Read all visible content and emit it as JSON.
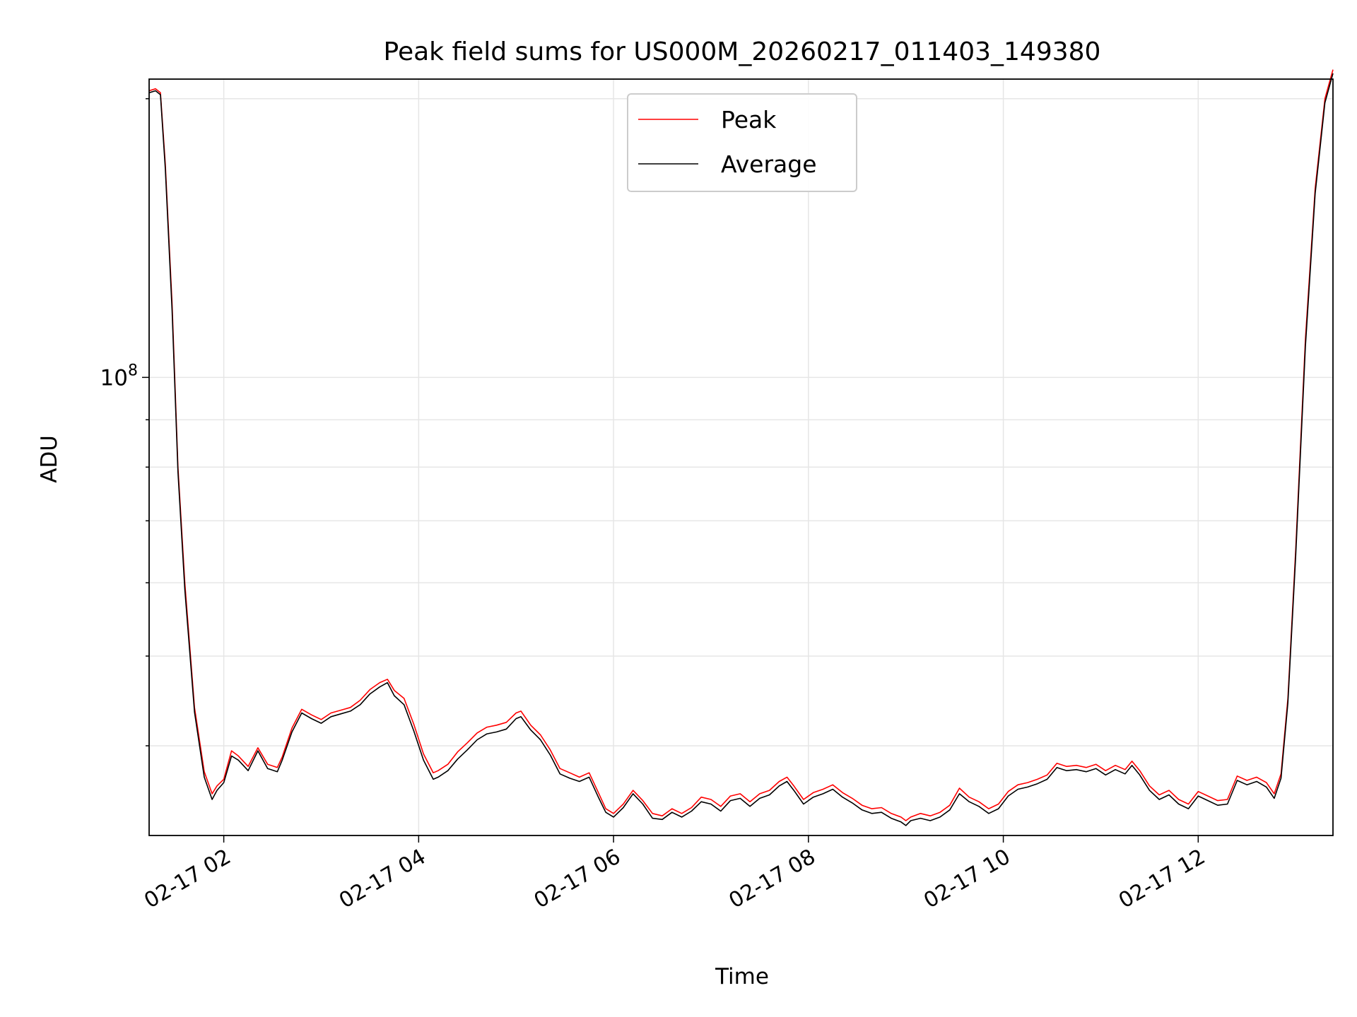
{
  "chart_data": {
    "type": "line",
    "title": "Peak field sums for US000M_20260217_011403_149380",
    "xlabel": "Time",
    "ylabel": "ADU",
    "y_scale": "log",
    "y_tick_labels": [
      {
        "base": "10",
        "exp": "8",
        "value": 100000000
      }
    ],
    "x_tick_labels": [
      "02-17 02",
      "02-17 04",
      "02-17 06",
      "02-17 08",
      "02-17 10",
      "02-17 12"
    ],
    "x_ticks_hours": [
      2,
      4,
      6,
      8,
      10,
      12
    ],
    "xlim_hours": [
      1.234,
      13.383
    ],
    "ylim": [
      32000000,
      210000000
    ],
    "grid": true,
    "legend": {
      "placement": "upper-center",
      "entries": [
        "Peak",
        "Average"
      ]
    },
    "colors": {
      "peak": "#ff0000",
      "average": "#000000",
      "grid": "#e6e6e6"
    },
    "series": [
      {
        "name": "Peak",
        "x_hours": [
          1.234,
          1.3,
          1.35,
          1.4,
          1.47,
          1.53,
          1.6,
          1.7,
          1.8,
          1.88,
          1.93,
          2.0,
          2.08,
          2.15,
          2.25,
          2.35,
          2.45,
          2.55,
          2.6,
          2.7,
          2.8,
          2.9,
          3.0,
          3.1,
          3.2,
          3.3,
          3.4,
          3.5,
          3.6,
          3.68,
          3.75,
          3.85,
          3.95,
          4.05,
          4.15,
          4.2,
          4.3,
          4.4,
          4.5,
          4.6,
          4.7,
          4.8,
          4.9,
          5.0,
          5.05,
          5.15,
          5.25,
          5.35,
          5.45,
          5.55,
          5.65,
          5.75,
          5.85,
          5.92,
          6.0,
          6.1,
          6.2,
          6.3,
          6.4,
          6.5,
          6.6,
          6.7,
          6.8,
          6.9,
          7.0,
          7.1,
          7.2,
          7.3,
          7.4,
          7.5,
          7.6,
          7.7,
          7.78,
          7.85,
          7.95,
          8.05,
          8.15,
          8.25,
          8.35,
          8.45,
          8.55,
          8.65,
          8.75,
          8.85,
          8.95,
          9.0,
          9.05,
          9.15,
          9.25,
          9.35,
          9.45,
          9.55,
          9.65,
          9.75,
          9.85,
          9.95,
          10.05,
          10.15,
          10.25,
          10.35,
          10.45,
          10.55,
          10.65,
          10.75,
          10.85,
          10.95,
          11.05,
          11.15,
          11.25,
          11.32,
          11.4,
          11.5,
          11.6,
          11.7,
          11.8,
          11.9,
          12.0,
          12.1,
          12.2,
          12.3,
          12.4,
          12.5,
          12.6,
          12.7,
          12.78,
          12.85,
          12.92,
          13.0,
          13.1,
          13.2,
          13.3,
          13.383
        ],
        "values": [
          204000000,
          205000000,
          203000000,
          170000000,
          120000000,
          80000000,
          60000000,
          44000000,
          37500000,
          35500000,
          36200000,
          36800000,
          39500000,
          39000000,
          38000000,
          39800000,
          38200000,
          37900000,
          38900000,
          41800000,
          43800000,
          43200000,
          42700000,
          43400000,
          43700000,
          44000000,
          44800000,
          46000000,
          46800000,
          47200000,
          45900000,
          45000000,
          42200000,
          39200000,
          37400000,
          37600000,
          38200000,
          39400000,
          40300000,
          41300000,
          41900000,
          42100000,
          42400000,
          43400000,
          43600000,
          42100000,
          41100000,
          39600000,
          37800000,
          37400000,
          37000000,
          37400000,
          35500000,
          34200000,
          33800000,
          34600000,
          35800000,
          34900000,
          33800000,
          33600000,
          34200000,
          33800000,
          34300000,
          35200000,
          35000000,
          34400000,
          35300000,
          35500000,
          34800000,
          35500000,
          35800000,
          36600000,
          37000000,
          36200000,
          35000000,
          35600000,
          35900000,
          36300000,
          35600000,
          35100000,
          34500000,
          34200000,
          34300000,
          33800000,
          33500000,
          33200000,
          33500000,
          33800000,
          33600000,
          33900000,
          34500000,
          36000000,
          35200000,
          34800000,
          34200000,
          34600000,
          35700000,
          36300000,
          36500000,
          36800000,
          37200000,
          38300000,
          38000000,
          38100000,
          37900000,
          38200000,
          37600000,
          38100000,
          37700000,
          38500000,
          37600000,
          36200000,
          35400000,
          35800000,
          35000000,
          34600000,
          35700000,
          35300000,
          34900000,
          35000000,
          37100000,
          36700000,
          37000000,
          36500000,
          35500000,
          37300000,
          45000000,
          65000000,
          110000000,
          160000000,
          200000000,
          215000000
        ]
      },
      {
        "name": "Average",
        "x_hours": [
          1.234,
          1.3,
          1.35,
          1.4,
          1.47,
          1.53,
          1.6,
          1.7,
          1.8,
          1.88,
          1.93,
          2.0,
          2.08,
          2.15,
          2.25,
          2.35,
          2.45,
          2.55,
          2.6,
          2.7,
          2.8,
          2.9,
          3.0,
          3.1,
          3.2,
          3.3,
          3.4,
          3.5,
          3.6,
          3.68,
          3.75,
          3.85,
          3.95,
          4.05,
          4.15,
          4.2,
          4.3,
          4.4,
          4.5,
          4.6,
          4.7,
          4.8,
          4.9,
          5.0,
          5.05,
          5.15,
          5.25,
          5.35,
          5.45,
          5.55,
          5.65,
          5.75,
          5.85,
          5.92,
          6.0,
          6.1,
          6.2,
          6.3,
          6.4,
          6.5,
          6.6,
          6.7,
          6.8,
          6.9,
          7.0,
          7.1,
          7.2,
          7.3,
          7.4,
          7.5,
          7.6,
          7.7,
          7.78,
          7.85,
          7.95,
          8.05,
          8.15,
          8.25,
          8.35,
          8.45,
          8.55,
          8.65,
          8.75,
          8.85,
          8.95,
          9.0,
          9.05,
          9.15,
          9.25,
          9.35,
          9.45,
          9.55,
          9.65,
          9.75,
          9.85,
          9.95,
          10.05,
          10.15,
          10.25,
          10.35,
          10.45,
          10.55,
          10.65,
          10.75,
          10.85,
          10.95,
          11.05,
          11.15,
          11.25,
          11.32,
          11.4,
          11.5,
          11.6,
          11.7,
          11.8,
          11.9,
          12.0,
          12.1,
          12.2,
          12.3,
          12.4,
          12.5,
          12.6,
          12.7,
          12.78,
          12.85,
          12.92,
          13.0,
          13.1,
          13.2,
          13.3,
          13.383
        ],
        "values": [
          203000000,
          204000000,
          202000000,
          168000000,
          118000000,
          79000000,
          59000000,
          43500000,
          37000000,
          35000000,
          35800000,
          36500000,
          39000000,
          38600000,
          37600000,
          39500000,
          37800000,
          37500000,
          38600000,
          41400000,
          43400000,
          42800000,
          42300000,
          43000000,
          43300000,
          43600000,
          44300000,
          45500000,
          46300000,
          46800000,
          45300000,
          44300000,
          41500000,
          38600000,
          36800000,
          37000000,
          37600000,
          38700000,
          39600000,
          40600000,
          41200000,
          41400000,
          41700000,
          42800000,
          43000000,
          41600000,
          40600000,
          39100000,
          37300000,
          36900000,
          36600000,
          37000000,
          35100000,
          33900000,
          33500000,
          34300000,
          35500000,
          34600000,
          33400000,
          33300000,
          33900000,
          33500000,
          34000000,
          34800000,
          34600000,
          34000000,
          34900000,
          35100000,
          34400000,
          35100000,
          35400000,
          36200000,
          36600000,
          35800000,
          34600000,
          35200000,
          35500000,
          35900000,
          35200000,
          34700000,
          34100000,
          33800000,
          33900000,
          33400000,
          33100000,
          32800000,
          33200000,
          33400000,
          33200000,
          33500000,
          34100000,
          35500000,
          34800000,
          34400000,
          33800000,
          34200000,
          35300000,
          35900000,
          36100000,
          36400000,
          36800000,
          37900000,
          37600000,
          37700000,
          37500000,
          37800000,
          37200000,
          37700000,
          37300000,
          38100000,
          37200000,
          35800000,
          35000000,
          35400000,
          34600000,
          34200000,
          35300000,
          34900000,
          34500000,
          34600000,
          36700000,
          36300000,
          36600000,
          36100000,
          35100000,
          36900000,
          44500000,
          64000000,
          108000000,
          158000000,
          198000000,
          213000000
        ]
      }
    ]
  }
}
